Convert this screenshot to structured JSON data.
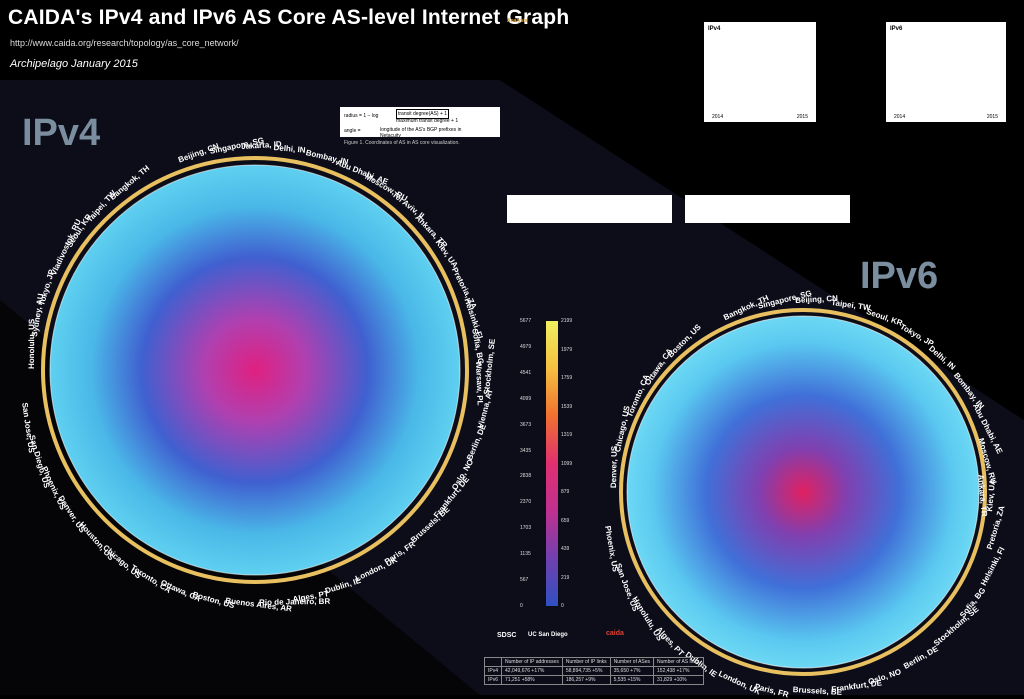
{
  "header": {
    "title": "CAIDA's IPv4 and IPv6 AS Core AS-level Internet Graph",
    "url": "http://www.caida.org/research/topology/as_core_network/",
    "subtitle": "Archipelago January 2015"
  },
  "labels": {
    "ipv4": "IPv4",
    "ipv6": "IPv6",
    "figure1_caption": "Figure 1. Coordinates of AS in AS core visualization.",
    "formula_angle": "angle =",
    "formula_longitude": "longitude of the AS's BGP prefixes in Netacuity",
    "formula_radius": "radius = 1 − log",
    "formula_num": "transit degree(AS) + 1",
    "formula_den": "maximum transit degree + 1"
  },
  "ipv4_cities": [
    "Beijing, CN",
    "Singapore, SG",
    "Jakarta, ID",
    "Delhi, IN",
    "Bombay, IN",
    "Abu Dhabi, AE",
    "Moscow, RU",
    "Tel Aviv, IL",
    "Ankara, TR",
    "Kiev, UA",
    "Pretoria, ZA",
    "Helsinki, FI",
    "Sofia, BG",
    "Warsaw, PL",
    "Stockholm, SE",
    "Vienna, AT",
    "Berlin, DE",
    "Oslo, NO",
    "Frankfurt, DE",
    "Brussels, BE",
    "Paris, FR",
    "London, UK",
    "Dublin, IE",
    "Alges, PT",
    "Rio de Janeiro, BR",
    "Buenos Aires, AR",
    "Boston, US",
    "Ottawa, CA",
    "Toronto, CA",
    "Chicago, US",
    "Houston, US",
    "Denver, US",
    "Phoenix, US",
    "San Diego, US",
    "San Jose, US",
    "Honolulu, US",
    "Sydney, AU",
    "Tokyo, JP",
    "Vladivostok, RU",
    "Seoul, KR",
    "Taipei, TW",
    "Bangkok, TH"
  ],
  "ipv6_cities": [
    "Bangkok, TH",
    "Singapore, SG",
    "Beijing, CN",
    "Taipei, TW",
    "Seoul, KR",
    "Tokyo, JP",
    "Delhi, IN",
    "Bombay, IN",
    "Abu Dhabi, AE",
    "Moscow, RU",
    "Ankara, TR",
    "Kiev, UA",
    "Pretoria, ZA",
    "Helsinki, FI",
    "Sofia, BG",
    "Stockholm, SE",
    "Berlin, DE",
    "Oslo, NO",
    "Frankfurt, DE",
    "Brussels, BE",
    "Paris, FR",
    "London, UK",
    "Dublin, IE",
    "Alges, PT",
    "Honolulu, US",
    "San Jose, US",
    "Phoenix, US",
    "Denver, US",
    "Chicago, US",
    "Toronto, CA",
    "Ottawa, CA",
    "Boston, US"
  ],
  "scale": {
    "left": [
      "5677",
      "4979",
      "4541",
      "4099",
      "3673",
      "3435",
      "2838",
      "2370",
      "1703",
      "1135",
      "567",
      "0"
    ],
    "right": [
      "2199",
      "1979",
      "1759",
      "1539",
      "1319",
      "1099",
      "879",
      "659",
      "439",
      "219",
      "0"
    ]
  },
  "table": {
    "headers": [
      "",
      "Number of IP addresses",
      "Number of IP links",
      "Number of ASes",
      "Number of AS links"
    ],
    "rows": [
      [
        "IPv4",
        "42,049,676 +17%",
        "58,894,735 +5%",
        "35,650 +7%",
        "152,438 +17%"
      ],
      [
        "IPv6",
        "71,251 +58%",
        "186,257 +9%",
        "5,535 +15%",
        "31,829 +10%"
      ]
    ]
  },
  "logos": [
    "SDSC",
    "UC San Diego",
    "caida"
  ],
  "analysis_title": "Analysis",
  "panels": {
    "ipv4_title": "IPv4",
    "ipv6_title": "IPv6",
    "years": [
      "2014",
      "2015"
    ]
  }
}
